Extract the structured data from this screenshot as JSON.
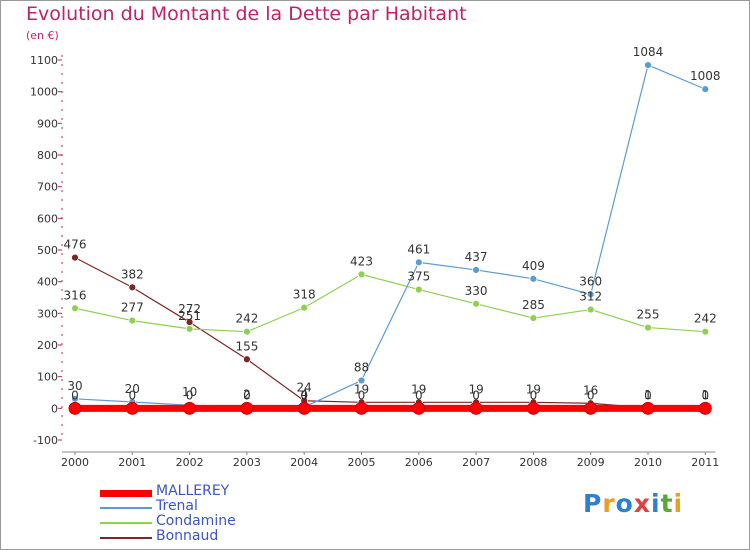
{
  "title": "Evolution du Montant de la Dette par Habitant",
  "unit": "(en €)",
  "logo": {
    "letters": [
      "P",
      "r",
      "o",
      "x",
      "i",
      "t",
      "i"
    ],
    "colors": [
      "#2f7fd0",
      "#e8a020",
      "#2f7fd0",
      "#e04040",
      "#2f7fd0",
      "#58a838",
      "#e8a020"
    ]
  },
  "chart_data": {
    "type": "line",
    "title": "Evolution du Montant de la Dette par Habitant",
    "ylabel": "(en €)",
    "xlabel": "",
    "x": [
      "2000",
      "2001",
      "2002",
      "2003",
      "2004",
      "2005",
      "2006",
      "2007",
      "2008",
      "2009",
      "2010",
      "2011"
    ],
    "ylim": [
      -100,
      1100
    ],
    "yticks": [
      -100,
      0,
      100,
      200,
      300,
      400,
      500,
      600,
      700,
      800,
      900,
      1000,
      1100
    ],
    "grid": false,
    "legend": "bottom-left",
    "series": [
      {
        "name": "MALLEREY",
        "color": "#ff0000",
        "values": [
          0,
          0,
          0,
          0,
          0,
          0,
          0,
          0,
          0,
          0,
          0,
          0
        ],
        "labels": [
          "0",
          "0",
          "0",
          "0",
          "0",
          "0",
          "0",
          "0",
          "0",
          "0",
          "0",
          "0"
        ]
      },
      {
        "name": "Trenal",
        "color": "#5b9bd5",
        "values": [
          30,
          20,
          10,
          2,
          4,
          88,
          461,
          437,
          409,
          360,
          1084,
          1008
        ],
        "labels": [
          "30",
          "20",
          "10",
          "2",
          "4",
          "88",
          "461",
          "437",
          "409",
          "360",
          "1084",
          "1008"
        ]
      },
      {
        "name": "Condamine",
        "color": "#8ed04f",
        "values": [
          316,
          277,
          251,
          242,
          318,
          423,
          375,
          330,
          285,
          312,
          255,
          242
        ],
        "labels": [
          "316",
          "277",
          "251",
          "242",
          "318",
          "423",
          "375",
          "330",
          "285",
          "312",
          "255",
          "242"
        ]
      },
      {
        "name": "Bonnaud",
        "color": "#7b2727",
        "values": [
          476,
          382,
          272,
          155,
          24,
          19,
          19,
          19,
          19,
          16,
          1,
          1
        ],
        "labels": [
          "476",
          "382",
          "272",
          "155",
          "24",
          "19",
          "19",
          "19",
          "19",
          "16",
          "1",
          "1"
        ]
      }
    ]
  }
}
